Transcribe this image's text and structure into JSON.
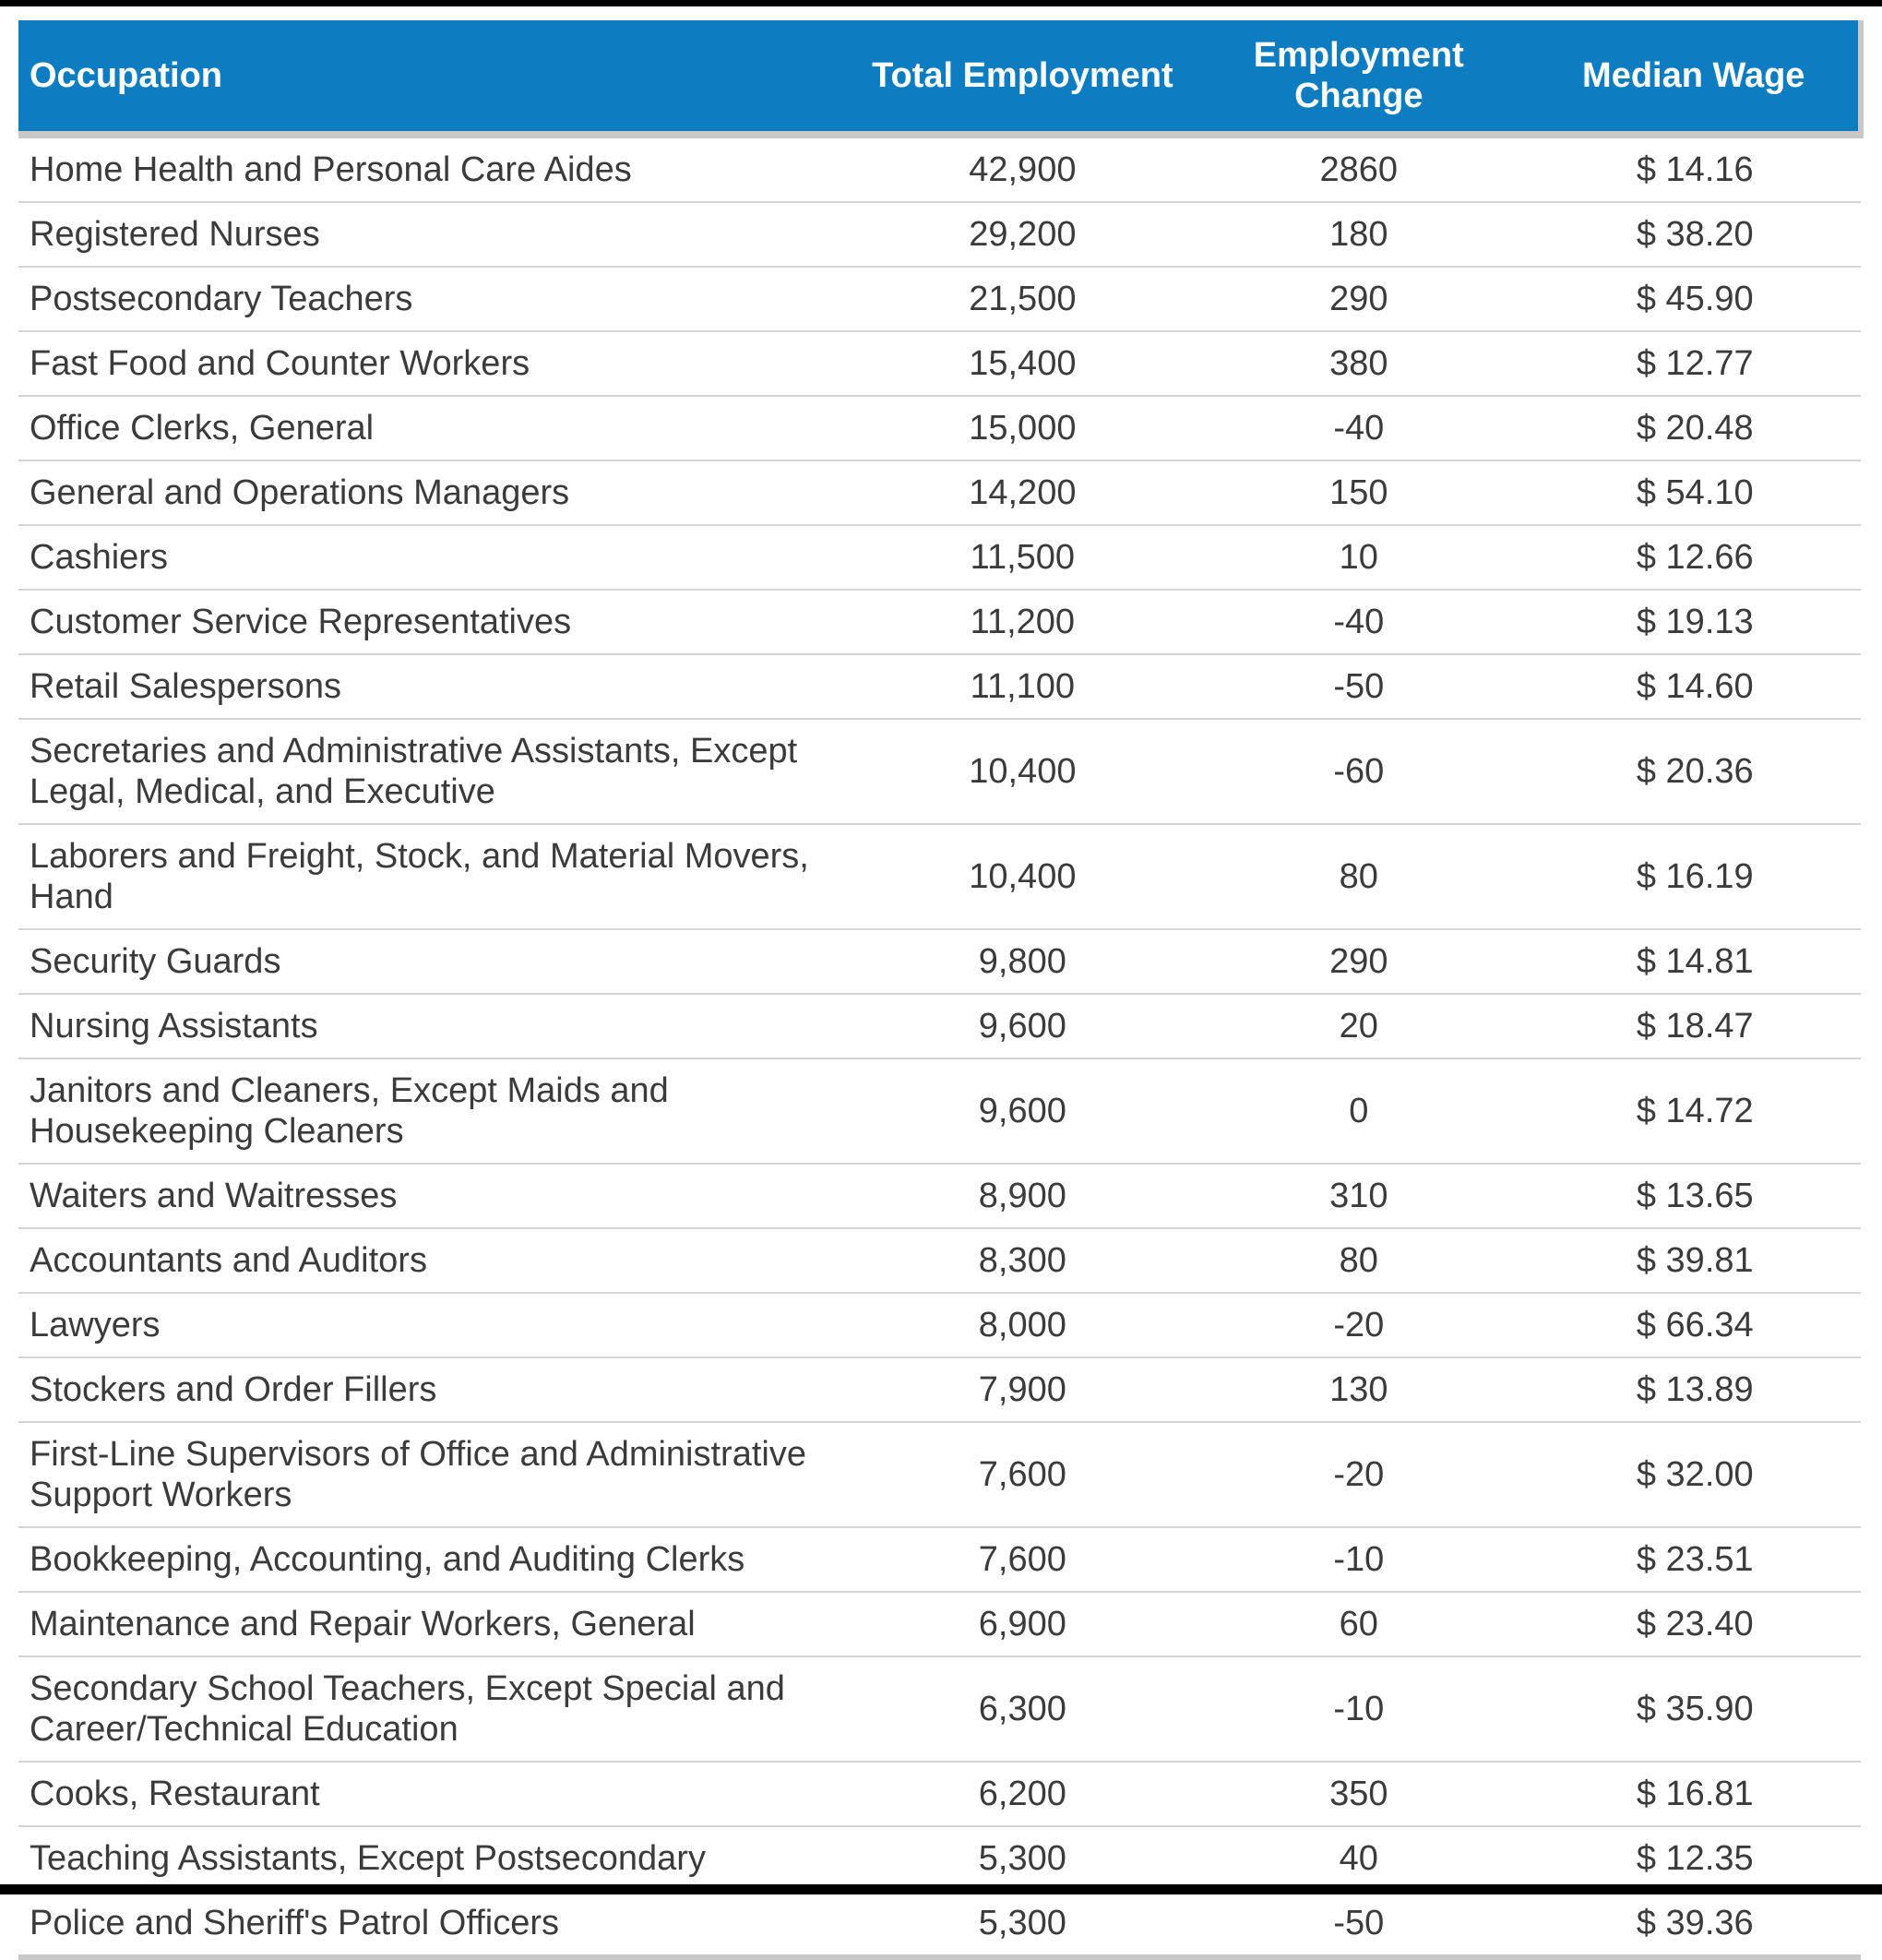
{
  "chart_data": {
    "type": "table",
    "columns": [
      "Occupation",
      "Total Employment",
      "Employment Change",
      "Median Wage"
    ],
    "rows": [
      {
        "occupation": "Home Health and Personal Care Aides",
        "total_employment": "42,900",
        "employment_change": "2860",
        "median_wage": "$ 14.16"
      },
      {
        "occupation": "Registered Nurses",
        "total_employment": "29,200",
        "employment_change": "180",
        "median_wage": "$ 38.20"
      },
      {
        "occupation": "Postsecondary Teachers",
        "total_employment": "21,500",
        "employment_change": "290",
        "median_wage": "$ 45.90"
      },
      {
        "occupation": "Fast Food and Counter Workers",
        "total_employment": "15,400",
        "employment_change": "380",
        "median_wage": "$ 12.77"
      },
      {
        "occupation": "Office Clerks, General",
        "total_employment": "15,000",
        "employment_change": "-40",
        "median_wage": "$ 20.48"
      },
      {
        "occupation": "General and Operations Managers",
        "total_employment": "14,200",
        "employment_change": "150",
        "median_wage": "$ 54.10"
      },
      {
        "occupation": "Cashiers",
        "total_employment": "11,500",
        "employment_change": "10",
        "median_wage": "$ 12.66"
      },
      {
        "occupation": "Customer Service Representatives",
        "total_employment": "11,200",
        "employment_change": "-40",
        "median_wage": "$ 19.13"
      },
      {
        "occupation": "Retail Salespersons",
        "total_employment": "11,100",
        "employment_change": "-50",
        "median_wage": "$ 14.60"
      },
      {
        "occupation": "Secretaries and Administrative Assistants, Except Legal, Medical, and Executive",
        "total_employment": "10,400",
        "employment_change": "-60",
        "median_wage": "$ 20.36"
      },
      {
        "occupation": "Laborers and Freight, Stock, and Material Movers, Hand",
        "total_employment": "10,400",
        "employment_change": "80",
        "median_wage": "$ 16.19"
      },
      {
        "occupation": "Security Guards",
        "total_employment": "9,800",
        "employment_change": "290",
        "median_wage": "$ 14.81"
      },
      {
        "occupation": "Nursing Assistants",
        "total_employment": "9,600",
        "employment_change": "20",
        "median_wage": "$ 18.47"
      },
      {
        "occupation": "Janitors and Cleaners, Except Maids and Housekeeping Cleaners",
        "total_employment": "9,600",
        "employment_change": "0",
        "median_wage": "$ 14.72"
      },
      {
        "occupation": "Waiters and Waitresses",
        "total_employment": "8,900",
        "employment_change": "310",
        "median_wage": "$ 13.65"
      },
      {
        "occupation": "Accountants and Auditors",
        "total_employment": "8,300",
        "employment_change": "80",
        "median_wage": "$ 39.81"
      },
      {
        "occupation": "Lawyers",
        "total_employment": "8,000",
        "employment_change": "-20",
        "median_wage": "$ 66.34"
      },
      {
        "occupation": "Stockers and Order Fillers",
        "total_employment": "7,900",
        "employment_change": "130",
        "median_wage": "$ 13.89"
      },
      {
        "occupation": "First-Line Supervisors of Office and Administrative Support Workers",
        "total_employment": "7,600",
        "employment_change": "-20",
        "median_wage": "$ 32.00"
      },
      {
        "occupation": "Bookkeeping, Accounting, and Auditing Clerks",
        "total_employment": "7,600",
        "employment_change": "-10",
        "median_wage": "$ 23.51"
      },
      {
        "occupation": "Maintenance and Repair Workers, General",
        "total_employment": "6,900",
        "employment_change": "60",
        "median_wage": "$ 23.40"
      },
      {
        "occupation": "Secondary School Teachers, Except Special and Career/Technical Education",
        "total_employment": "6,300",
        "employment_change": "-10",
        "median_wage": "$ 35.90"
      },
      {
        "occupation": "Cooks, Restaurant",
        "total_employment": "6,200",
        "employment_change": "350",
        "median_wage": "$ 16.81"
      },
      {
        "occupation": "Teaching Assistants, Except Postsecondary",
        "total_employment": "5,300",
        "employment_change": "40",
        "median_wage": "$ 12.35"
      },
      {
        "occupation": "Police and Sheriff's Patrol Officers",
        "total_employment": "5,300",
        "employment_change": "-50",
        "median_wage": "$ 39.36"
      }
    ]
  },
  "colors": {
    "header_background": "#0d7cc1",
    "header_text": "#ffffff",
    "body_text": "#3b3b3b",
    "row_divider": "#d4d4d4",
    "table_border": "#c8c8c8",
    "frame_bar": "#000000"
  }
}
